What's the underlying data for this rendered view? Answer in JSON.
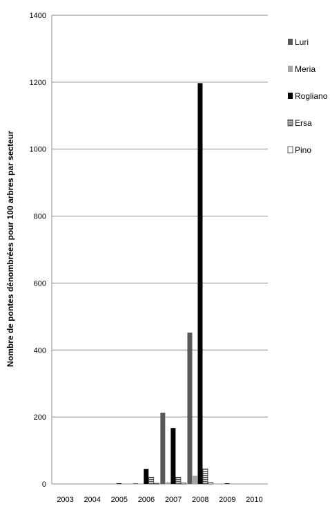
{
  "chart_data": {
    "type": "bar",
    "title": "",
    "xlabel": "",
    "ylabel": "Nombre de pontes dénombrées pour 100 arbres par secteur",
    "ylim": [
      0,
      1400
    ],
    "yticks": [
      0,
      200,
      400,
      600,
      800,
      1000,
      1200,
      1400
    ],
    "grid": true,
    "legend_position": "right",
    "categories": [
      "2003",
      "2004",
      "2005",
      "2006",
      "2007",
      "2008",
      "2009",
      "2010"
    ],
    "series": [
      {
        "name": "Luri",
        "color": "#595959",
        "pattern": "solid",
        "values": [
          0,
          0,
          0,
          2,
          213,
          452,
          0,
          0
        ]
      },
      {
        "name": "Meria",
        "color": "#a6a6a6",
        "pattern": "solid",
        "values": [
          0,
          0,
          0,
          1,
          5,
          25,
          0,
          0
        ]
      },
      {
        "name": "Rogliano",
        "color": "#000000",
        "pattern": "solid",
        "values": [
          0,
          0,
          2,
          45,
          167,
          1197,
          2,
          0
        ]
      },
      {
        "name": "Ersa",
        "color": "#7f7f7f",
        "pattern": "striped",
        "values": [
          0,
          0,
          0,
          20,
          20,
          45,
          0,
          0
        ]
      },
      {
        "name": "Pino",
        "color": "#ffffff",
        "pattern": "outline",
        "values": [
          0,
          0,
          0,
          2,
          3,
          5,
          0,
          0
        ]
      }
    ]
  }
}
